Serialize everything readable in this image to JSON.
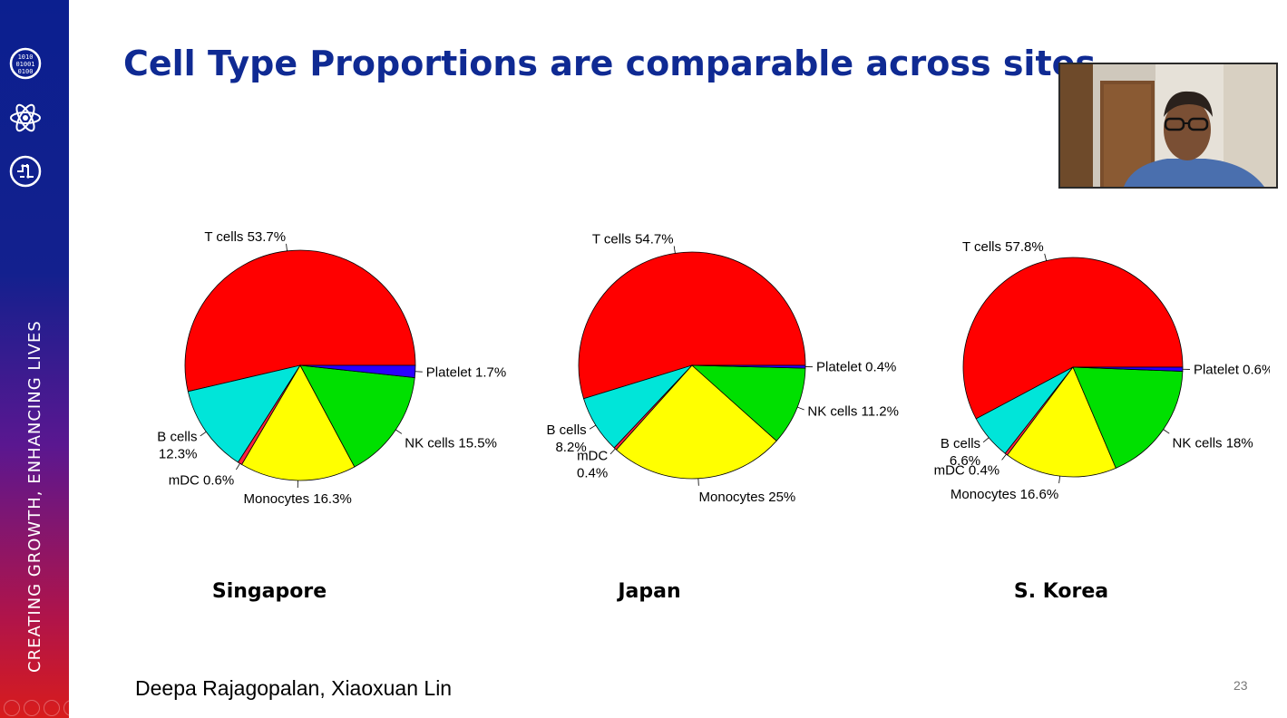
{
  "slide": {
    "title": "Cell Type Proportions are comparable across sites",
    "tagline": "CREATING GROWTH, ENHANCING LIVES",
    "authors": "Deepa Rajagopalan, Xiaoxuan Lin",
    "slide_number": "23"
  },
  "sidebar": {
    "icons": [
      "binary-data-icon",
      "atom-icon",
      "brain-circuit-icon"
    ]
  },
  "colors": {
    "T cells": "#ff0000",
    "B cells": "#00e5d9",
    "mDC": "#ff2040",
    "Monocytes": "#ffff00",
    "NK cells": "#00e000",
    "Platelet": "#2a00ff",
    "sidebar_top": "#0b1f8f",
    "sidebar_bottom": "#d81c1c",
    "title": "#0f2a93"
  },
  "chart_data": [
    {
      "type": "pie",
      "title": "Singapore",
      "slices": [
        {
          "name": "T cells",
          "value": 53.7,
          "label_lines": [
            "T cells 53.7%"
          ]
        },
        {
          "name": "B cells",
          "value": 12.3,
          "label_lines": [
            "B cells",
            "12.3%"
          ]
        },
        {
          "name": "mDC",
          "value": 0.6,
          "label_lines": [
            "mDC 0.6%"
          ]
        },
        {
          "name": "Monocytes",
          "value": 16.3,
          "label_lines": [
            "Monocytes 16.3%"
          ]
        },
        {
          "name": "NK cells",
          "value": 15.5,
          "label_lines": [
            "NK cells 15.5%"
          ]
        },
        {
          "name": "Platelet",
          "value": 1.7,
          "label_lines": [
            "Platelet 1.7%"
          ]
        }
      ]
    },
    {
      "type": "pie",
      "title": "Japan",
      "slices": [
        {
          "name": "T cells",
          "value": 54.7,
          "label_lines": [
            "T cells 54.7%"
          ]
        },
        {
          "name": "B cells",
          "value": 8.2,
          "label_lines": [
            "B cells",
            "8.2%"
          ]
        },
        {
          "name": "mDC",
          "value": 0.4,
          "label_lines": [
            "mDC",
            "0.4%"
          ]
        },
        {
          "name": "Monocytes",
          "value": 25,
          "label_lines": [
            "Monocytes 25%"
          ]
        },
        {
          "name": "NK cells",
          "value": 11.2,
          "label_lines": [
            "NK cells 11.2%"
          ]
        },
        {
          "name": "Platelet",
          "value": 0.4,
          "label_lines": [
            "Platelet 0.4%"
          ]
        }
      ]
    },
    {
      "type": "pie",
      "title": "S. Korea",
      "slices": [
        {
          "name": "T cells",
          "value": 57.8,
          "label_lines": [
            "T cells 57.8%"
          ]
        },
        {
          "name": "B cells",
          "value": 6.6,
          "label_lines": [
            "B cells",
            "6.6%"
          ]
        },
        {
          "name": "mDC",
          "value": 0.4,
          "label_lines": [
            "mDC 0.4%"
          ]
        },
        {
          "name": "Monocytes",
          "value": 16.6,
          "label_lines": [
            "Monocytes 16.6%"
          ]
        },
        {
          "name": "NK cells",
          "value": 18,
          "label_lines": [
            "NK cells 18%"
          ]
        },
        {
          "name": "Platelet",
          "value": 0.6,
          "label_lines": [
            "Platelet 0.6%"
          ]
        }
      ]
    }
  ]
}
